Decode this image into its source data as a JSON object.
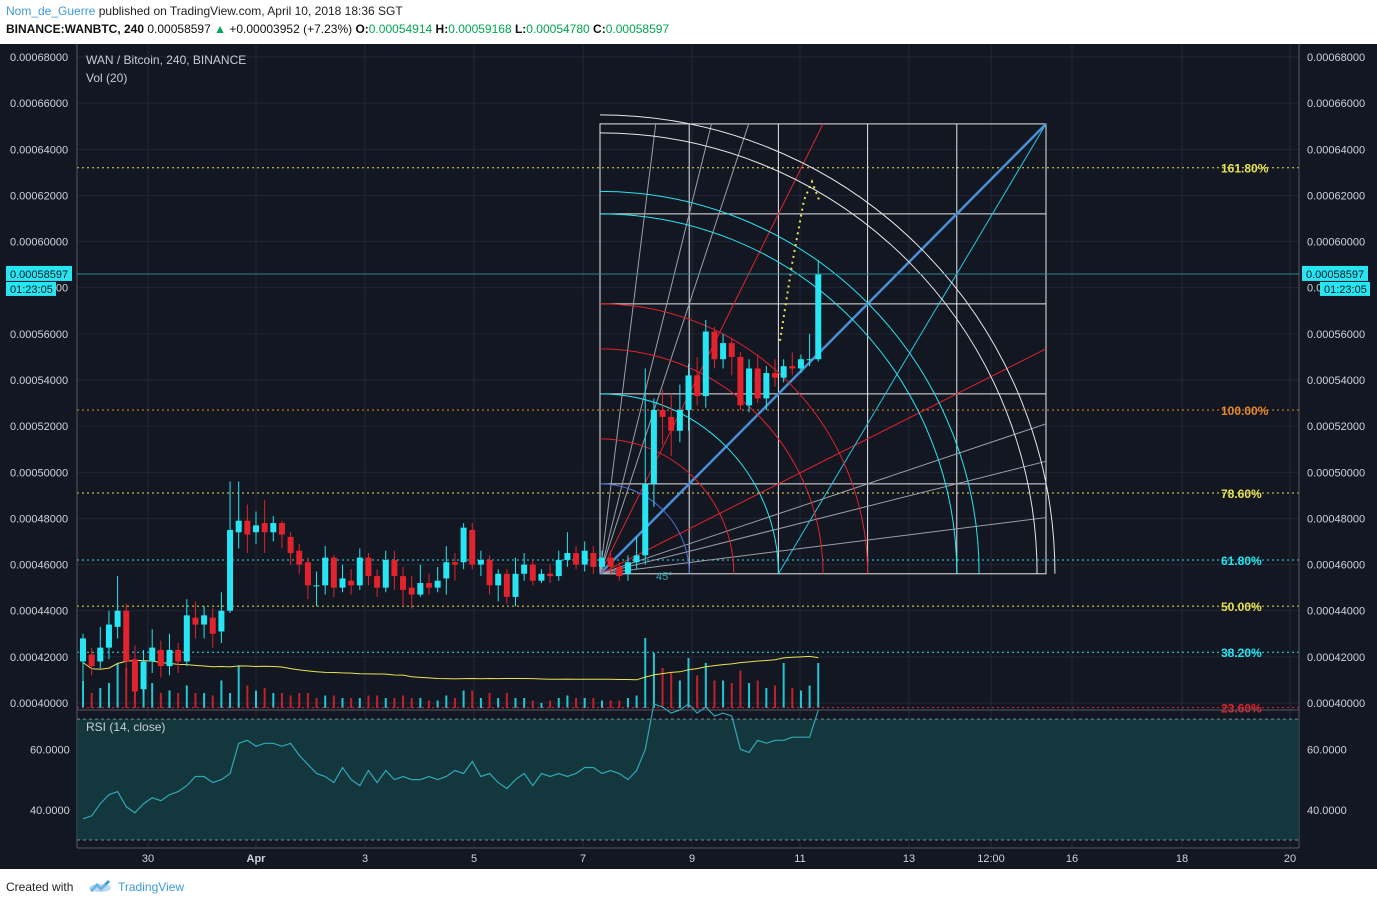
{
  "header": {
    "author": "Nom_de_Guerre",
    "published": "published on TradingView.com, April 10, 2018 18:36 SGT",
    "symbol": "BINANCE:WANBTC, 240",
    "last": "0.00058597",
    "change": "+0.00003952 (+7.23%)",
    "o_label": "O:",
    "o": "0.00054914",
    "h_label": "H:",
    "h": "0.00059168",
    "l_label": "L:",
    "l": "0.00054780",
    "c_label": "C:",
    "c": "0.00058597"
  },
  "footer": {
    "created_with": "Created with",
    "brand": "TradingView"
  },
  "colors": {
    "bg": "#131722",
    "grid": "#232734",
    "up": "#27e5f2",
    "down": "#e0232d",
    "vol_ma": "#e8e252",
    "rsi": "#2fa7b7",
    "rsi_band": "#153b40",
    "price_line": "#2a8a94",
    "fib_orange": "#e5892a"
  },
  "chart_data": [
    {
      "type": "candlestick",
      "title": "WAN / Bitcoin, 240, BINANCE",
      "indicator_label": "Vol (20)",
      "ylim": [
        0.0004,
        0.00068
      ],
      "y_ticks": [
        "0.00068000",
        "0.00066000",
        "0.00064000",
        "0.00062000",
        "0.00060000",
        "0.00058000",
        "0.00056000",
        "0.00054000",
        "0.00052000",
        "0.00050000",
        "0.00048000",
        "0.00046000",
        "0.00044000",
        "0.00042000",
        "0.00040000"
      ],
      "x_ticks": [
        "30",
        "Apr",
        "3",
        "5",
        "7",
        "9",
        "11",
        "13",
        "12:00",
        "16",
        "18",
        "20"
      ],
      "current_price": "0.00058597",
      "countdown": "01:23:05",
      "candles": [
        [
          0.000418,
          0.000428,
          0.00043,
          0.00041
        ],
        [
          0.000421,
          0.000416,
          0.000424,
          0.000412
        ],
        [
          0.000418,
          0.000424,
          0.000433,
          0.000415
        ],
        [
          0.000424,
          0.000434,
          0.00044,
          0.000419
        ],
        [
          0.000433,
          0.00044,
          0.000455,
          0.000428
        ],
        [
          0.00044,
          0.000418,
          0.000443,
          0.000412
        ],
        [
          0.000419,
          0.000405,
          0.000425,
          0.0004
        ],
        [
          0.000406,
          0.000418,
          0.000423,
          0.000404
        ],
        [
          0.000418,
          0.000424,
          0.000432,
          0.000413
        ],
        [
          0.000423,
          0.000416,
          0.000427,
          0.000411
        ],
        [
          0.000416,
          0.000423,
          0.00043,
          0.000412
        ],
        [
          0.000423,
          0.000418,
          0.000426,
          0.000413
        ],
        [
          0.000418,
          0.000438,
          0.000445,
          0.000416
        ],
        [
          0.000437,
          0.000434,
          0.000444,
          0.000428
        ],
        [
          0.000434,
          0.000438,
          0.000442,
          0.000428
        ],
        [
          0.000437,
          0.00043,
          0.000441,
          0.000424
        ],
        [
          0.000431,
          0.00044,
          0.000448,
          0.000426
        ],
        [
          0.00044,
          0.000475,
          0.000496,
          0.000439
        ],
        [
          0.000474,
          0.000479,
          0.000496,
          0.000467
        ],
        [
          0.000479,
          0.000473,
          0.000486,
          0.000465
        ],
        [
          0.000474,
          0.000477,
          0.000483,
          0.000469
        ],
        [
          0.000478,
          0.000474,
          0.000488,
          0.000465
        ],
        [
          0.000474,
          0.000478,
          0.000481,
          0.00047
        ],
        [
          0.000478,
          0.000473,
          0.000479,
          0.000467
        ],
        [
          0.000472,
          0.000465,
          0.000474,
          0.00046
        ],
        [
          0.000466,
          0.00046,
          0.000469,
          0.000456
        ],
        [
          0.000461,
          0.000451,
          0.000463,
          0.000445
        ],
        [
          0.000451,
          0.000451,
          0.000457,
          0.000442
        ],
        [
          0.000451,
          0.000463,
          0.000468,
          0.000447
        ],
        [
          0.000463,
          0.00045,
          0.000464,
          0.000446
        ],
        [
          0.00045,
          0.000454,
          0.00046,
          0.000448
        ],
        [
          0.000453,
          0.000451,
          0.000458,
          0.000447
        ],
        [
          0.000451,
          0.000463,
          0.000467,
          0.000449
        ],
        [
          0.000463,
          0.000455,
          0.000465,
          0.000451
        ],
        [
          0.000455,
          0.00045,
          0.000458,
          0.000446
        ],
        [
          0.00045,
          0.000462,
          0.000466,
          0.000448
        ],
        [
          0.000462,
          0.000455,
          0.000466,
          0.000449
        ],
        [
          0.000455,
          0.000449,
          0.000459,
          0.000442
        ],
        [
          0.00045,
          0.000447,
          0.000455,
          0.000441
        ],
        [
          0.000447,
          0.000452,
          0.00046,
          0.000446
        ],
        [
          0.000452,
          0.00045,
          0.000456,
          0.000447
        ],
        [
          0.00045,
          0.000453,
          0.000459,
          0.000448
        ],
        [
          0.000454,
          0.000461,
          0.000468,
          0.000447
        ],
        [
          0.000461,
          0.00046,
          0.000465,
          0.000453
        ],
        [
          0.000461,
          0.000476,
          0.000478,
          0.000458
        ],
        [
          0.000475,
          0.00046,
          0.000478,
          0.000458
        ],
        [
          0.00046,
          0.000462,
          0.000466,
          0.000455
        ],
        [
          0.000462,
          0.000451,
          0.000464,
          0.000447
        ],
        [
          0.000451,
          0.000456,
          0.000458,
          0.000444
        ],
        [
          0.000456,
          0.000446,
          0.000458,
          0.000443
        ],
        [
          0.000446,
          0.000456,
          0.000463,
          0.000442
        ],
        [
          0.000456,
          0.00046,
          0.000465,
          0.000453
        ],
        [
          0.00046,
          0.000453,
          0.000462,
          0.000451
        ],
        [
          0.000453,
          0.000456,
          0.000458,
          0.000452
        ],
        [
          0.000456,
          0.000455,
          0.00046,
          0.000452
        ],
        [
          0.000455,
          0.000462,
          0.000466,
          0.000453
        ],
        [
          0.000462,
          0.000465,
          0.000474,
          0.000459
        ],
        [
          0.000465,
          0.00046,
          0.000468,
          0.000458
        ],
        [
          0.00046,
          0.000466,
          0.00047,
          0.000457
        ],
        [
          0.000465,
          0.000459,
          0.000468,
          0.000456
        ],
        [
          0.000459,
          0.000463,
          0.000466,
          0.000458
        ],
        [
          0.000463,
          0.000459,
          0.000466,
          0.000456
        ],
        [
          0.000459,
          0.000455,
          0.000461,
          0.000453
        ],
        [
          0.000456,
          0.000461,
          0.000464,
          0.000453
        ],
        [
          0.000461,
          0.000464,
          0.000472,
          0.000458
        ],
        [
          0.000464,
          0.000495,
          0.000545,
          0.00046
        ],
        [
          0.000495,
          0.000527,
          0.000532,
          0.000485
        ],
        [
          0.000527,
          0.000524,
          0.000536,
          0.000512
        ],
        [
          0.000524,
          0.000518,
          0.000534,
          0.000507
        ],
        [
          0.000518,
          0.000527,
          0.000538,
          0.000513
        ],
        [
          0.000527,
          0.000542,
          0.000547,
          0.000518
        ],
        [
          0.000542,
          0.000533,
          0.00055,
          0.000529
        ],
        [
          0.000533,
          0.000561,
          0.000566,
          0.000528
        ],
        [
          0.000561,
          0.000549,
          0.000563,
          0.000545
        ],
        [
          0.000549,
          0.000556,
          0.00056,
          0.000545
        ],
        [
          0.000556,
          0.00055,
          0.000558,
          0.000542
        ],
        [
          0.00055,
          0.000529,
          0.000552,
          0.000527
        ],
        [
          0.000529,
          0.000545,
          0.000549,
          0.000526
        ],
        [
          0.000545,
          0.000532,
          0.000551,
          0.00053
        ],
        [
          0.000532,
          0.000543,
          0.000546,
          0.000527
        ],
        [
          0.000543,
          0.000541,
          0.000549,
          0.000537
        ],
        [
          0.000541,
          0.000546,
          0.000549,
          0.000539
        ],
        [
          0.000546,
          0.000545,
          0.000552,
          0.000542
        ],
        [
          0.000545,
          0.000549,
          0.000551,
          0.000543
        ],
        [
          0.000549,
          0.000549,
          0.00056,
          0.000546
        ],
        [
          0.000549,
          0.000586,
          0.000592,
          0.000548
        ]
      ],
      "volume": [
        [
          0.55,
          0
        ],
        [
          0.3,
          1
        ],
        [
          0.4,
          0
        ],
        [
          0.5,
          0
        ],
        [
          0.9,
          0
        ],
        [
          0.8,
          1
        ],
        [
          0.7,
          1
        ],
        [
          0.55,
          0
        ],
        [
          0.5,
          0
        ],
        [
          0.3,
          1
        ],
        [
          0.35,
          0
        ],
        [
          0.3,
          1
        ],
        [
          0.45,
          0
        ],
        [
          0.3,
          1
        ],
        [
          0.3,
          0
        ],
        [
          0.25,
          1
        ],
        [
          0.55,
          0
        ],
        [
          0.3,
          0
        ],
        [
          0.85,
          0
        ],
        [
          0.45,
          1
        ],
        [
          0.35,
          0
        ],
        [
          0.4,
          1
        ],
        [
          0.3,
          0
        ],
        [
          0.3,
          1
        ],
        [
          0.25,
          1
        ],
        [
          0.3,
          1
        ],
        [
          0.3,
          1
        ],
        [
          0.2,
          1
        ],
        [
          0.25,
          0
        ],
        [
          0.25,
          1
        ],
        [
          0.2,
          0
        ],
        [
          0.2,
          1
        ],
        [
          0.2,
          0
        ],
        [
          0.25,
          1
        ],
        [
          0.25,
          1
        ],
        [
          0.2,
          0
        ],
        [
          0.2,
          1
        ],
        [
          0.25,
          1
        ],
        [
          0.2,
          1
        ],
        [
          0.2,
          0
        ],
        [
          0.15,
          1
        ],
        [
          0.15,
          0
        ],
        [
          0.25,
          0
        ],
        [
          0.2,
          1
        ],
        [
          0.35,
          0
        ],
        [
          0.35,
          1
        ],
        [
          0.2,
          0
        ],
        [
          0.3,
          1
        ],
        [
          0.2,
          0
        ],
        [
          0.3,
          1
        ],
        [
          0.2,
          0
        ],
        [
          0.2,
          0
        ],
        [
          0.15,
          1
        ],
        [
          0.1,
          0
        ],
        [
          0.15,
          1
        ],
        [
          0.2,
          0
        ],
        [
          0.25,
          0
        ],
        [
          0.2,
          1
        ],
        [
          0.2,
          0
        ],
        [
          0.2,
          1
        ],
        [
          0.15,
          0
        ],
        [
          0.15,
          1
        ],
        [
          0.15,
          1
        ],
        [
          0.2,
          0
        ],
        [
          0.25,
          0
        ],
        [
          1.4,
          0
        ],
        [
          1.1,
          0
        ],
        [
          0.8,
          1
        ],
        [
          0.7,
          1
        ],
        [
          0.55,
          0
        ],
        [
          1.0,
          0
        ],
        [
          0.65,
          1
        ],
        [
          0.9,
          0
        ],
        [
          0.55,
          1
        ],
        [
          0.55,
          0
        ],
        [
          0.5,
          1
        ],
        [
          0.75,
          1
        ],
        [
          0.5,
          0
        ],
        [
          0.55,
          1
        ],
        [
          0.4,
          0
        ],
        [
          0.45,
          1
        ],
        [
          0.9,
          0
        ],
        [
          0.4,
          1
        ],
        [
          0.35,
          0
        ],
        [
          0.45,
          0
        ],
        [
          0.9,
          0
        ]
      ],
      "annotations": {
        "gann_box": {
          "from_price": 0.000456,
          "to_price": 0.000651,
          "angle_label": "45°"
        },
        "fib_levels": [
          {
            "label": "161.80%",
            "price": 0.000632,
            "color": "#e8e252"
          },
          {
            "label": "100.00%",
            "price": 0.000527,
            "color": "#e5892a"
          },
          {
            "label": "78.60%",
            "price": 0.000491,
            "color": "#e8e252"
          },
          {
            "label": "61.80%",
            "price": 0.000462,
            "color": "#27e5f2"
          },
          {
            "label": "50.00%",
            "price": 0.000442,
            "color": "#e8e252"
          },
          {
            "label": "38.20%",
            "price": 0.000422,
            "color": "#27e5f2"
          },
          {
            "label": "23.60%",
            "price": 0.000398,
            "color": "#e0232d"
          }
        ],
        "projection": [
          [
            0.000557,
            0.0
          ],
          [
            0.00059,
            0.3
          ],
          [
            0.000618,
            0.6
          ],
          [
            0.000626,
            0.8
          ],
          [
            0.000617,
            1.0
          ]
        ]
      }
    },
    {
      "type": "line",
      "title": "RSI (14, close)",
      "ylim": [
        30,
        75
      ],
      "y_ticks": [
        "60.0000",
        "40.0000"
      ],
      "bands": [
        30,
        70
      ],
      "values": [
        37,
        38,
        42,
        45,
        46,
        41,
        39,
        42,
        44,
        43,
        45,
        46,
        48,
        51,
        51,
        49,
        50,
        52,
        62,
        63,
        61,
        62,
        62,
        61,
        62,
        58,
        55,
        52,
        51,
        49,
        54,
        50,
        48,
        53,
        49,
        53,
        50,
        51,
        50,
        50,
        51,
        50,
        51,
        53,
        52,
        56,
        51,
        52,
        49,
        47,
        50,
        52,
        48,
        52,
        51,
        52,
        51,
        52,
        54,
        54,
        52,
        53,
        52,
        50,
        53,
        60,
        75,
        74,
        72,
        73,
        75,
        72,
        74,
        71,
        72,
        71,
        60,
        59,
        63,
        62,
        63,
        63,
        64,
        64,
        64,
        73
      ]
    }
  ]
}
